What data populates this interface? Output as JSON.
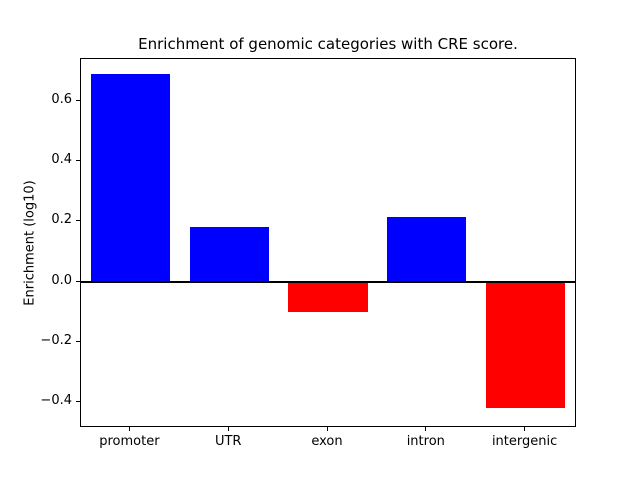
{
  "chart_data": {
    "type": "bar",
    "title": "Enrichment of genomic categories with CRE score.",
    "xlabel": "",
    "ylabel": "Enrichment (log10)",
    "categories": [
      "promoter",
      "UTR",
      "exon",
      "intron",
      "intergenic"
    ],
    "values": [
      0.69,
      0.18,
      -0.1,
      0.215,
      -0.42
    ],
    "ylim": [
      -0.48,
      0.74
    ],
    "yticks": [
      -0.4,
      -0.2,
      0.0,
      0.2,
      0.4,
      0.6
    ],
    "colors": {
      "positive": "#0000ff",
      "negative": "#ff0000",
      "axis": "#000000",
      "background": "#ffffff"
    },
    "bar_width_fraction": 0.8,
    "zero_line": true,
    "grid": false,
    "legend_position": "none"
  }
}
